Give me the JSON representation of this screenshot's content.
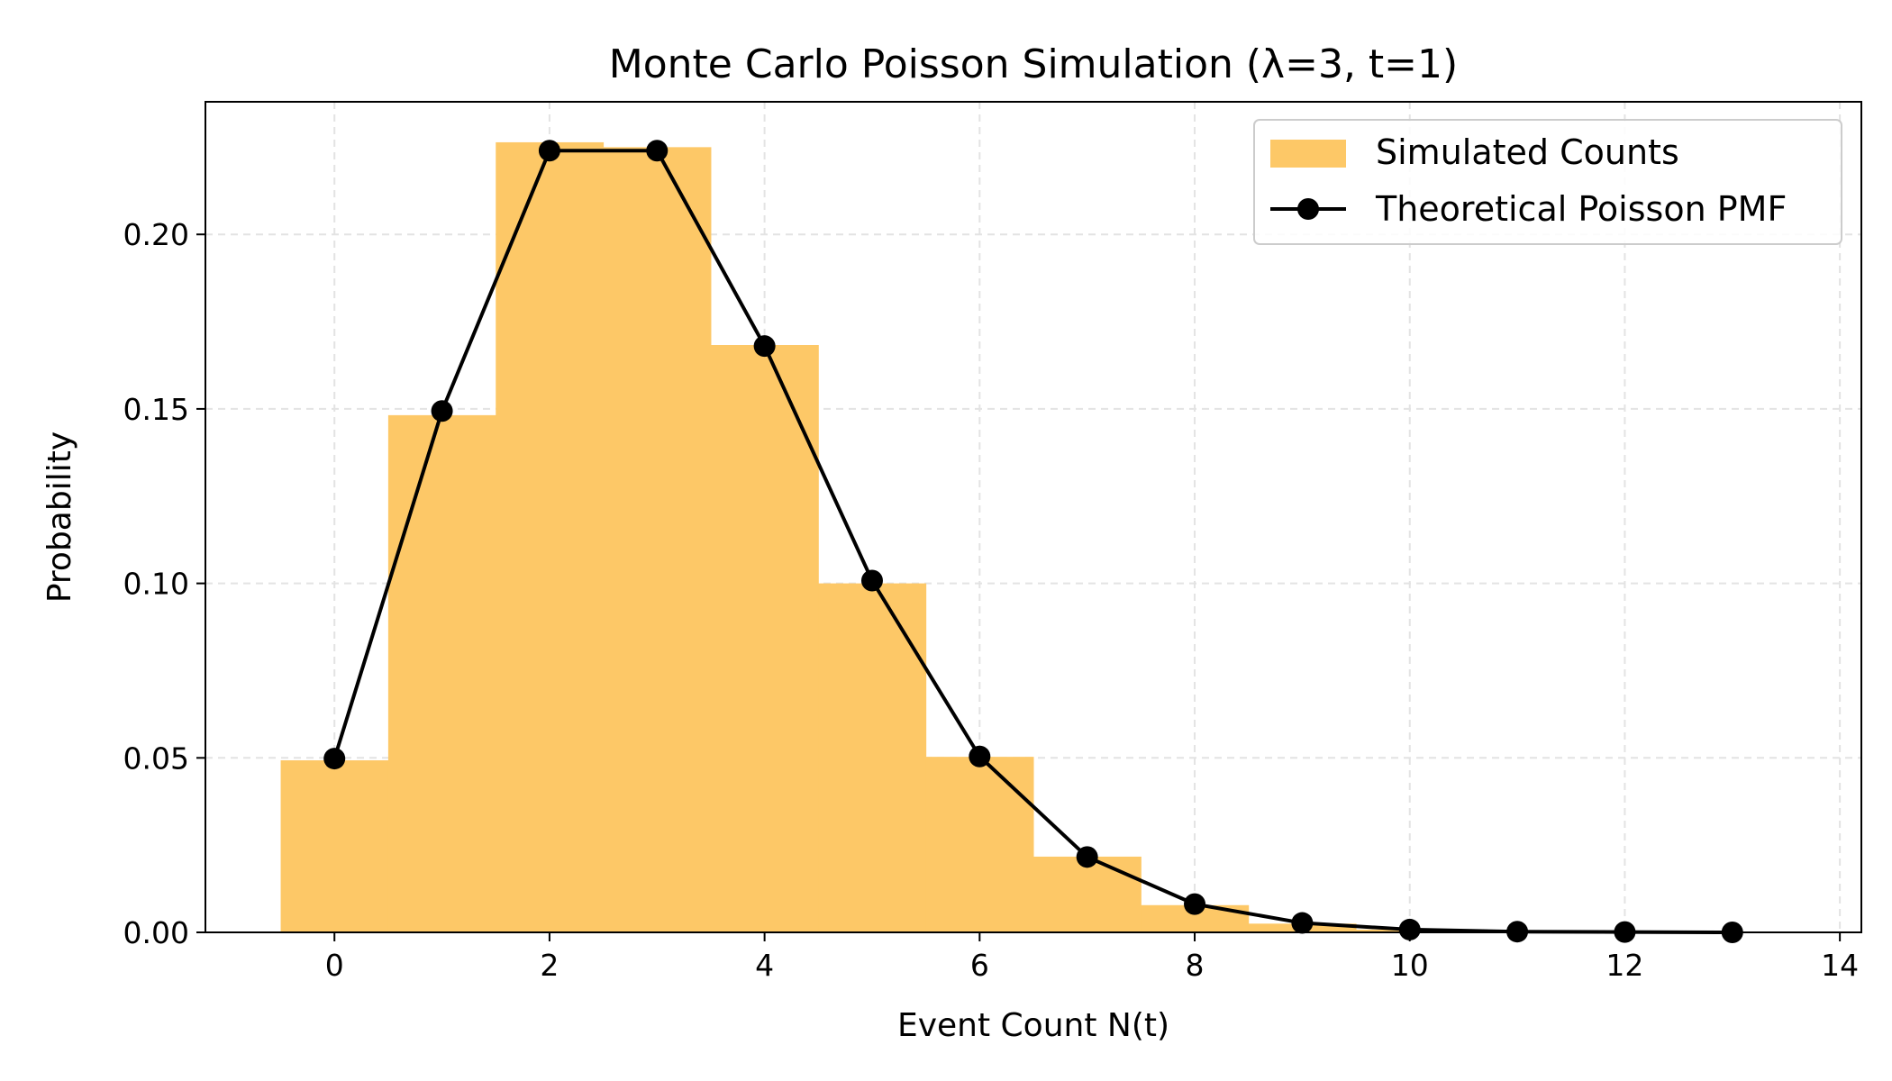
{
  "chart_data": {
    "type": "bar",
    "title": "Monte Carlo Poisson Simulation (λ=3, t=1)",
    "xlabel": "Event Count N(t)",
    "ylabel": "Probability",
    "xlim": [
      -1.2,
      14.2
    ],
    "ylim": [
      0,
      0.238
    ],
    "xticks": [
      "0",
      "2",
      "4",
      "6",
      "8",
      "10",
      "12",
      "14"
    ],
    "yticks": [
      "0.00",
      "0.05",
      "0.10",
      "0.15",
      "0.20"
    ],
    "grid": true,
    "legend_position": "top-right",
    "series": [
      {
        "name": "Simulated Counts",
        "type": "bar",
        "color": "#fdc867",
        "x": [
          0,
          1,
          2,
          3,
          4,
          5,
          6,
          7,
          8,
          9,
          10,
          11,
          12,
          13
        ],
        "values": [
          0.0493,
          0.1482,
          0.2264,
          0.225,
          0.1683,
          0.1,
          0.0503,
          0.0217,
          0.0078,
          0.0025,
          0.0008,
          0.0002,
          0.0001,
          0.0
        ]
      },
      {
        "name": "Theoretical Poisson PMF",
        "type": "line",
        "color": "#000000",
        "marker": "circle",
        "x": [
          0,
          1,
          2,
          3,
          4,
          5,
          6,
          7,
          8,
          9,
          10,
          11,
          12,
          13
        ],
        "values": [
          0.0498,
          0.1494,
          0.224,
          0.224,
          0.168,
          0.1008,
          0.0504,
          0.0216,
          0.0081,
          0.0027,
          0.0008,
          0.0002,
          0.0001,
          0.0
        ]
      }
    ]
  }
}
